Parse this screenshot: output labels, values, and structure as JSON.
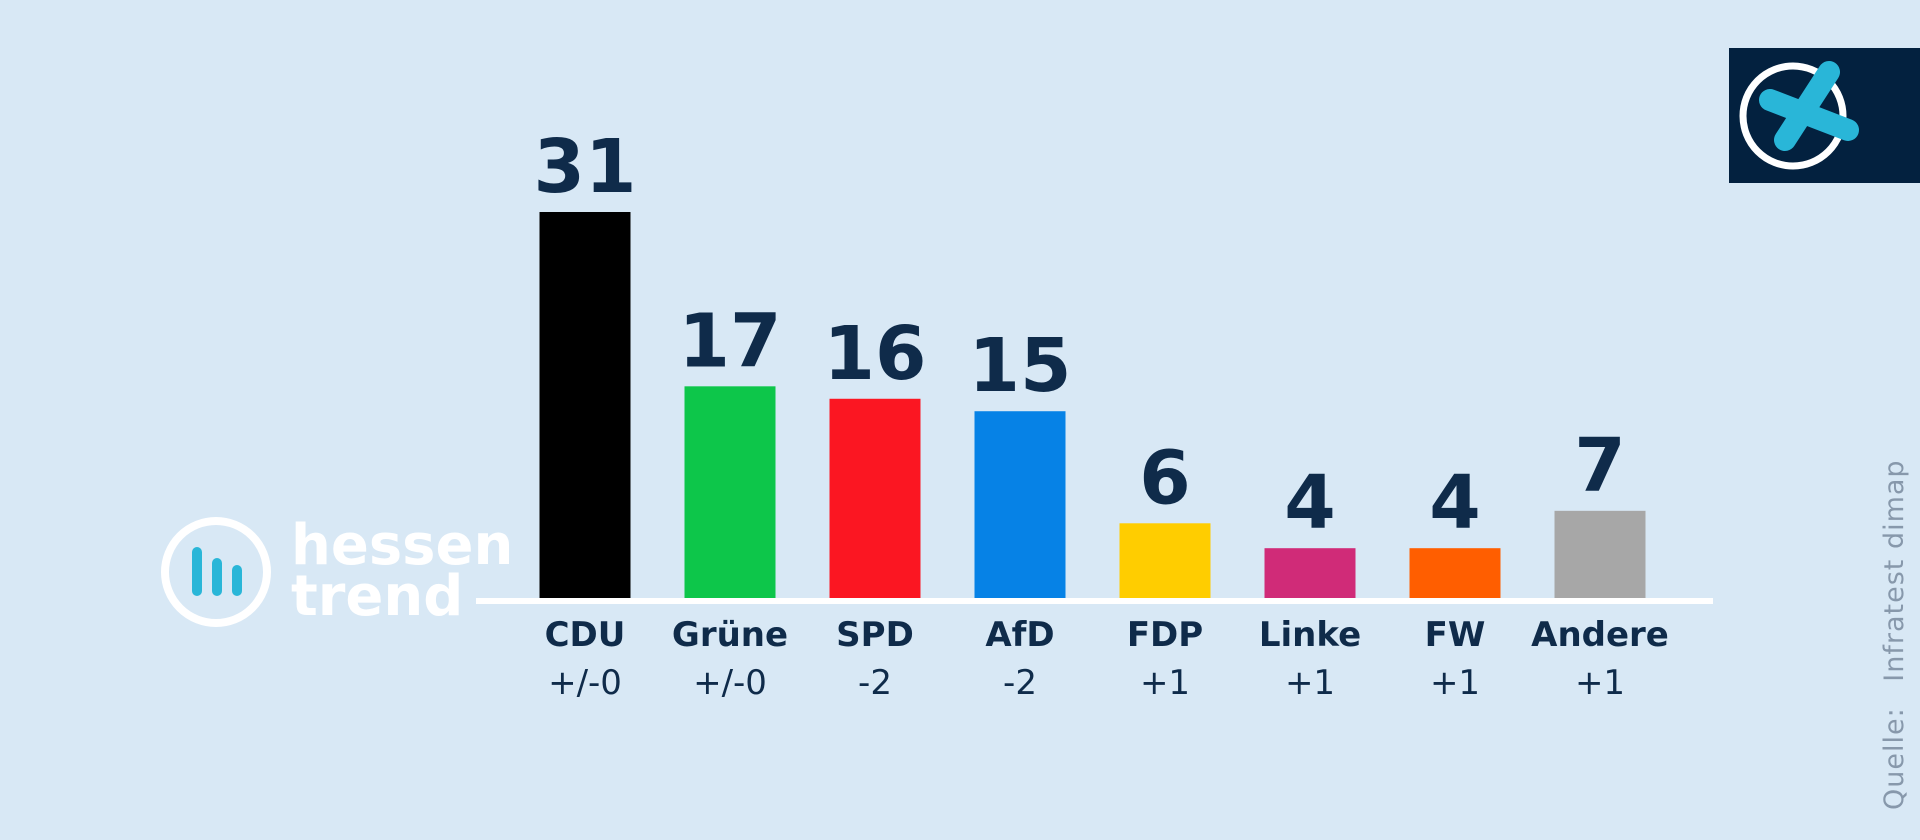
{
  "chart_data": {
    "type": "bar",
    "categories": [
      "CDU",
      "Grüne",
      "SPD",
      "AfD",
      "FDP",
      "Linke",
      "FW",
      "Andere"
    ],
    "values": [
      31,
      17,
      16,
      15,
      6,
      4,
      4,
      7
    ],
    "changes": [
      "+/-0",
      "+/-0",
      "-2",
      "-2",
      "+1",
      "+1",
      "+1",
      "+1"
    ],
    "colors": [
      "#000000",
      "#0dc64a",
      "#fb1622",
      "#0682e6",
      "#ffcd00",
      "#d02b78",
      "#ff5e00",
      "#a7a7a7"
    ],
    "ylim": [
      0,
      31
    ],
    "grid": false
  },
  "branding": {
    "logo_line1": "hessen",
    "logo_line2": "trend",
    "logo_icon": "bar-chart-circle-icon",
    "badge_icon": "ballot-cross-icon",
    "accent_color": "#29b6d8",
    "badge_background": "#03213f"
  },
  "source": {
    "label": "Quelle:",
    "name": "Infratest dimap"
  }
}
